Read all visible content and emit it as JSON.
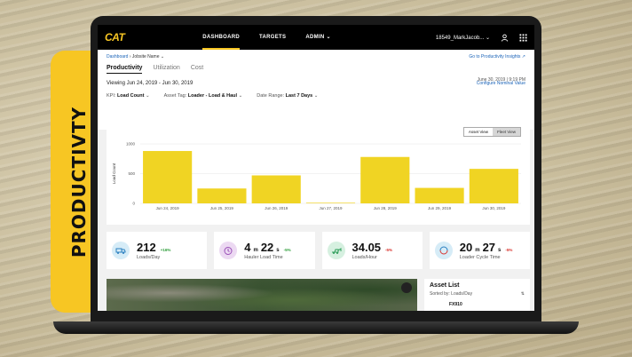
{
  "banner": {
    "text": "PRODUCTIVTY"
  },
  "nav": {
    "logo": "CAT",
    "items": [
      "DASHBOARD",
      "TARGETS",
      "ADMIN"
    ],
    "user": "18549_MarkJacob..."
  },
  "header": {
    "breadcrumb_root": "Dashboard",
    "breadcrumb_site": "Jobsite Name",
    "insights_link": "Go to Productivity Insights",
    "tabs": [
      "Productivity",
      "Utilization",
      "Cost"
    ],
    "as_of": "June 30, 2019  |  9:19 PM",
    "viewing": "Viewing Jun 24, 2019 - Jun 30, 2019",
    "configure": "Configure Nominal Value"
  },
  "filters": {
    "kpi_label": "KPI:",
    "kpi_value": "Load Count",
    "tag_label": "Asset Tag:",
    "tag_value": "Loader - Load & Haul",
    "range_label": "Date Range:",
    "range_value": "Last 7 Days"
  },
  "chart_toggle": {
    "asset": "Asset View",
    "fleet": "Fleet View"
  },
  "chart_data": {
    "type": "bar",
    "categories": [
      "Jun 24, 2019",
      "Jun 25, 2019",
      "Jun 26, 2019",
      "Jun 27, 2019",
      "Jun 28, 2019",
      "Jun 29, 2019",
      "Jun 30, 2019"
    ],
    "values": [
      880,
      250,
      470,
      10,
      780,
      260,
      580
    ],
    "ylabel": "Load Count",
    "yticks": [
      0,
      500,
      1000
    ],
    "ylim": [
      0,
      1000
    ],
    "bar_color": "#f0d423"
  },
  "kpis": [
    {
      "value": "212",
      "unit": "",
      "delta": "+16%",
      "label": "Loads/Day",
      "delta_color": "#2e9e3a",
      "icon_bg": "#d6ecf7",
      "icon": "truck-icon"
    },
    {
      "value": "4",
      "unit": "m",
      "value2": "22",
      "unit2": "s",
      "delta": "-5%",
      "label": "Hauler Load Time",
      "delta_color": "#2e9e3a",
      "icon_bg": "#ecd9f2",
      "icon": "timer-icon"
    },
    {
      "value": "34.05",
      "unit": "",
      "delta": "-5%",
      "label": "Loads/Hour",
      "delta_color": "#d8322c",
      "icon_bg": "#d6f0e0",
      "icon": "loader-icon"
    },
    {
      "value": "20",
      "unit": "m",
      "value2": "27",
      "unit2": "s",
      "delta": "-5%",
      "label": "Loader Cycle Time",
      "delta_color": "#d8322c",
      "icon_bg": "#d6ecf7",
      "icon": "cycle-icon"
    }
  ],
  "asset_list": {
    "title": "Asset List",
    "sort": "Sorted by: Loads/Day",
    "first_item": "FX910"
  }
}
